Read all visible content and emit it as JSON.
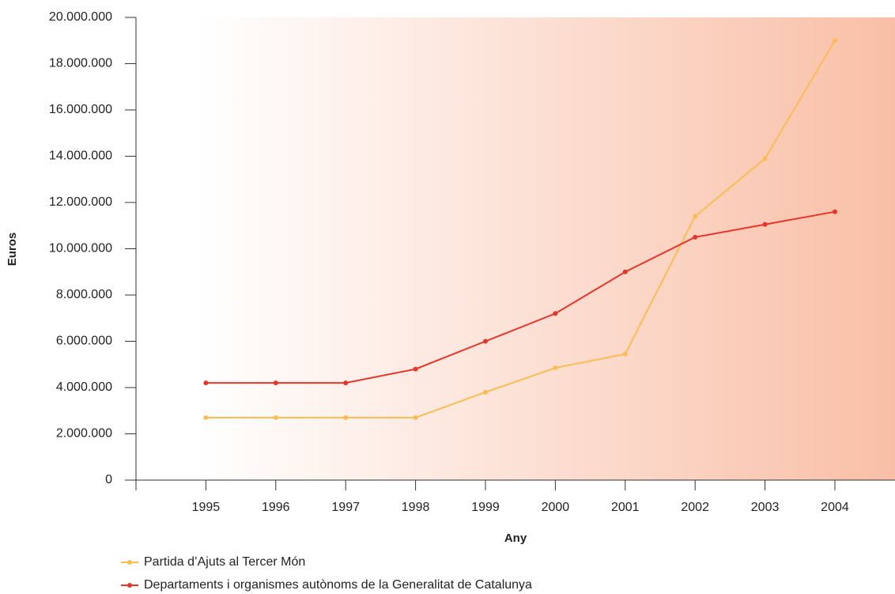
{
  "chart_data": {
    "type": "line",
    "x": [
      1995,
      1996,
      1997,
      1998,
      1999,
      2000,
      2001,
      2002,
      2003,
      2004
    ],
    "xlim": [
      1994,
      2004.86
    ],
    "xticks": [
      1995,
      1996,
      1997,
      1998,
      1999,
      2000,
      2001,
      2002,
      2003,
      2004
    ],
    "ylim": [
      0,
      20000000
    ],
    "yticks": [
      0,
      {
        "value": 2000000,
        "label": "2.000.000"
      },
      {
        "value": 4000000,
        "label": "4.000.000"
      },
      {
        "value": 6000000,
        "label": "6.000.000"
      },
      {
        "value": 8000000,
        "label": "8.000.000"
      },
      {
        "value": 10000000,
        "label": "10.000.000"
      },
      {
        "value": 12000000,
        "label": "12.000.000"
      },
      {
        "value": 14000000,
        "label": "14.000.000"
      },
      {
        "value": 16000000,
        "label": "16.000.000"
      },
      {
        "value": 18000000,
        "label": "18.000.000"
      },
      {
        "value": 20000000,
        "label": "20.000.000"
      }
    ],
    "x_label": "Any",
    "y_label": "Euros",
    "series": [
      {
        "name": "Partida d’Ajuts al Tercer Món",
        "color": "#fbbd4f",
        "values": [
          2700000,
          2700000,
          2700000,
          2700000,
          3800000,
          4850000,
          5450000,
          11400000,
          13900000,
          19000000
        ]
      },
      {
        "name": "Departaments i organismes autònoms de la Generalitat de Catalunya",
        "color": "#e8352a",
        "values": [
          4200000,
          4200000,
          4200000,
          4800000,
          6000000,
          7200000,
          9000000,
          10500000,
          11050000,
          11600000
        ]
      }
    ]
  }
}
